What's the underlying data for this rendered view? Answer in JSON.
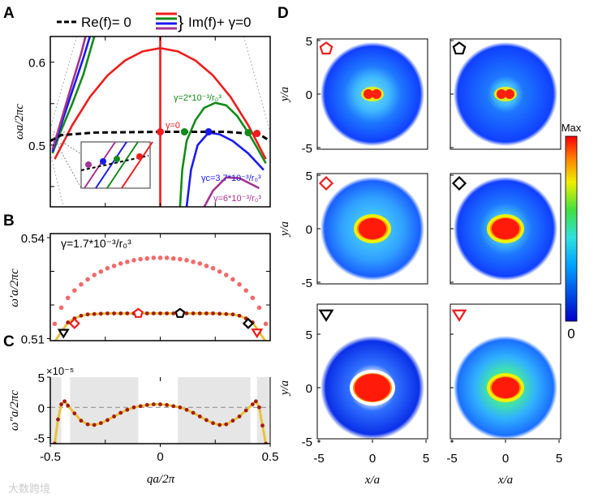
{
  "colors": {
    "red": "#ee1c1c",
    "green": "#138a1a",
    "blue": "#1a1aee",
    "purple": "#a4338e",
    "black": "#000000",
    "dots_light": "#f26a6a",
    "dots_dark": "#a31c10",
    "yellow": "#e8c23a",
    "band": "#e6e6e6"
  },
  "watermark": "大数跨境",
  "chart_data": [
    {
      "panel": "A",
      "type": "line",
      "ylabel": "ωa/2πc",
      "xlim": [
        -0.5,
        0.5
      ],
      "ylim": [
        0.4255,
        0.631
      ],
      "yticks": [
        "0.6",
        "0.5"
      ],
      "ytick_values": [
        0.6,
        0.5
      ],
      "legend": {
        "dashed": "Re(f)= 0",
        "solid": "Im(f)+ γ=0"
      },
      "series": [
        {
          "name": "γ=0",
          "color": "red",
          "points": [
            [
              -0.48,
              0.483
            ],
            [
              -0.4,
              0.524
            ],
            [
              -0.32,
              0.558
            ],
            [
              -0.24,
              0.584
            ],
            [
              -0.16,
              0.602
            ],
            [
              -0.08,
              0.613
            ],
            [
              0,
              0.617
            ],
            [
              0.08,
              0.613
            ],
            [
              0.16,
              0.602
            ],
            [
              0.24,
              0.584
            ],
            [
              0.32,
              0.558
            ],
            [
              0.4,
              0.524
            ],
            [
              0.48,
              0.483
            ]
          ]
        },
        {
          "name": "γ=0 vertical",
          "color": "red",
          "points": [
            [
              0,
              0.631
            ],
            [
              0,
              0.4255
            ]
          ]
        },
        {
          "name": "γ=2*10^-3/r0^3",
          "color": "green",
          "points": [
            [
              0.09,
              0.4255
            ],
            [
              0.1,
              0.47
            ],
            [
              0.12,
              0.505
            ],
            [
              0.16,
              0.53
            ],
            [
              0.2,
              0.545
            ],
            [
              0.25,
              0.551
            ],
            [
              0.3,
              0.548
            ],
            [
              0.35,
              0.535
            ],
            [
              0.4,
              0.515
            ],
            [
              0.44,
              0.497
            ],
            [
              0.48,
              0.478
            ]
          ]
        },
        {
          "name": "green-left",
          "color": "green",
          "points": [
            [
              -0.49,
              0.49
            ],
            [
              -0.45,
              0.518
            ],
            [
              -0.4,
              0.55
            ],
            [
              -0.35,
              0.585
            ],
            [
              -0.3,
              0.631
            ]
          ]
        },
        {
          "name": "γc=3.7*10^-3/r0^3",
          "color": "blue",
          "points": [
            [
              0.12,
              0.4255
            ],
            [
              0.14,
              0.47
            ],
            [
              0.17,
              0.5
            ],
            [
              0.22,
              0.515
            ],
            [
              0.27,
              0.513
            ],
            [
              0.33,
              0.505
            ],
            [
              0.4,
              0.49
            ],
            [
              0.47,
              0.47
            ]
          ]
        },
        {
          "name": "blue-left",
          "color": "blue",
          "points": [
            [
              -0.49,
              0.492
            ],
            [
              -0.45,
              0.525
            ],
            [
              -0.4,
              0.565
            ],
            [
              -0.35,
              0.605
            ],
            [
              -0.32,
              0.631
            ]
          ]
        },
        {
          "name": "γ=6*10^-3/r0^3",
          "color": "purple",
          "points": [
            [
              0.2,
              0.4255
            ],
            [
              0.24,
              0.445
            ],
            [
              0.3,
              0.461
            ],
            [
              0.36,
              0.46
            ],
            [
              0.42,
              0.452
            ],
            [
              0.45,
              0.448
            ]
          ]
        },
        {
          "name": "purple-left",
          "color": "purple",
          "points": [
            [
              -0.49,
              0.495
            ],
            [
              -0.45,
              0.53
            ],
            [
              -0.4,
              0.575
            ],
            [
              -0.36,
              0.61
            ],
            [
              -0.34,
              0.631
            ]
          ]
        },
        {
          "name": "Re(f)=0",
          "color": "black",
          "dashed": true,
          "points": [
            [
              -0.5,
              0.505
            ],
            [
              -0.45,
              0.512
            ],
            [
              -0.3,
              0.515
            ],
            [
              0,
              0.516
            ],
            [
              0.3,
              0.516
            ],
            [
              0.45,
              0.513
            ],
            [
              0.5,
              0.505
            ]
          ]
        },
        {
          "name": "light-line-left",
          "color": "gray",
          "dotted": true,
          "points": [
            [
              -0.38,
              0.631
            ],
            [
              -0.5,
              0.52
            ]
          ]
        },
        {
          "name": "light-line-left-low",
          "color": "gray",
          "dotted": true,
          "points": [
            [
              -0.5,
              0.49
            ],
            [
              -0.44,
              0.4255
            ]
          ]
        },
        {
          "name": "light-line-right",
          "color": "gray",
          "dotted": true,
          "points": [
            [
              0.38,
              0.631
            ],
            [
              0.5,
              0.515
            ]
          ]
        }
      ],
      "markers": [
        {
          "color": "red",
          "q": 0,
          "w": 0.516
        },
        {
          "color": "red",
          "q": 0.44,
          "w": 0.514
        },
        {
          "color": "green",
          "q": 0.11,
          "w": 0.516
        },
        {
          "color": "green",
          "q": 0.4,
          "w": 0.515
        },
        {
          "color": "blue",
          "q": 0.22,
          "w": 0.516
        }
      ],
      "annotations": [
        {
          "text": "γ=0",
          "color": "red"
        },
        {
          "text": "γ=2*10⁻³/r₀³",
          "color": "green"
        },
        {
          "text": "γc=3.7*10⁻³/r₀³",
          "color": "blue"
        },
        {
          "text": "γ=6*10⁻³/r₀³",
          "color": "purple"
        }
      ]
    },
    {
      "panel": "B",
      "type": "scatter",
      "ylabel": "ω′a/2πc",
      "annotation": "γ=1.7*10⁻³/r₀³",
      "xlim": [
        -0.5,
        0.5
      ],
      "ylim": [
        0.5094,
        0.5412
      ],
      "yticks": [
        "0.54",
        "0.51"
      ],
      "ytick_values": [
        0.54,
        0.51
      ],
      "q": [
        -0.48,
        -0.45,
        -0.42,
        -0.39,
        -0.36,
        -0.33,
        -0.3,
        -0.27,
        -0.24,
        -0.21,
        -0.18,
        -0.15,
        -0.12,
        -0.09,
        -0.06,
        -0.03,
        0,
        0.03,
        0.06,
        0.09,
        0.12,
        0.15,
        0.18,
        0.21,
        0.24,
        0.27,
        0.3,
        0.33,
        0.36,
        0.39,
        0.42,
        0.45,
        0.48
      ],
      "upper": [
        0.5144,
        0.5192,
        0.5221,
        0.5243,
        0.5261,
        0.5276,
        0.5289,
        0.5299,
        0.5309,
        0.5316,
        0.5323,
        0.5328,
        0.5333,
        0.5336,
        0.5338,
        0.534,
        0.534,
        0.534,
        0.5338,
        0.5336,
        0.5333,
        0.5328,
        0.5323,
        0.5316,
        0.5309,
        0.5299,
        0.5289,
        0.5276,
        0.5261,
        0.5243,
        0.5221,
        0.5192,
        0.5144
      ],
      "lower": [
        0.509,
        0.512,
        0.5148,
        0.516,
        0.5168,
        0.5172,
        0.5173,
        0.5174,
        0.5175,
        0.5175,
        0.5175,
        0.5175,
        0.5175,
        0.5175,
        0.5175,
        0.5175,
        0.5175,
        0.5175,
        0.5175,
        0.5175,
        0.5175,
        0.5175,
        0.5175,
        0.5175,
        0.5175,
        0.5174,
        0.5173,
        0.5172,
        0.5168,
        0.516,
        0.5148,
        0.512,
        0.509
      ],
      "markers": [
        {
          "shape": "triangle-down",
          "color": "black",
          "q": -0.44,
          "w": 0.5117
        },
        {
          "shape": "diamond",
          "color": "red",
          "q": -0.39,
          "w": 0.5145
        },
        {
          "shape": "pentagon",
          "color": "red",
          "q": -0.1,
          "w": 0.5175
        },
        {
          "shape": "pentagon",
          "color": "black",
          "q": 0.09,
          "w": 0.5175
        },
        {
          "shape": "diamond",
          "color": "black",
          "q": 0.4,
          "w": 0.5145
        },
        {
          "shape": "triangle-down",
          "color": "red",
          "q": 0.44,
          "w": 0.5118
        }
      ]
    },
    {
      "panel": "C",
      "type": "line",
      "ylabel": "ω″a/2πc",
      "xlabel": "qa/2π",
      "scale_label": "×10⁻⁵",
      "xlim": [
        -0.5,
        0.5
      ],
      "ylim": [
        -6,
        5
      ],
      "yticks": [
        "5",
        "0",
        "-5"
      ],
      "ytick_values": [
        5,
        0,
        -5
      ],
      "xticks": [
        "-0.5",
        "0",
        "0.5"
      ],
      "xtick_values": [
        -0.5,
        0,
        0.5
      ],
      "bands": [
        [
          -0.5,
          -0.45
        ],
        [
          -0.41,
          -0.1
        ],
        [
          0.08,
          0.41
        ],
        [
          0.44,
          0.5
        ]
      ],
      "q": [
        -0.48,
        -0.465,
        -0.45,
        -0.435,
        -0.42,
        -0.39,
        -0.36,
        -0.33,
        -0.3,
        -0.27,
        -0.24,
        -0.21,
        -0.18,
        -0.15,
        -0.12,
        -0.09,
        -0.06,
        -0.03,
        0,
        0.03,
        0.06,
        0.09,
        0.12,
        0.15,
        0.18,
        0.21,
        0.24,
        0.27,
        0.3,
        0.33,
        0.36,
        0.39,
        0.42,
        0.435,
        0.45,
        0.465,
        0.48
      ],
      "values": [
        -6,
        -2,
        0.5,
        1,
        0.3,
        -1,
        -2.2,
        -2.8,
        -2.9,
        -2.6,
        -2.1,
        -1.5,
        -0.9,
        -0.4,
        0,
        0.2,
        0.4,
        0.5,
        0.5,
        0.4,
        0.2,
        0,
        -0.4,
        -0.9,
        -1.5,
        -2.1,
        -2.6,
        -2.9,
        -2.8,
        -2.2,
        -1.5,
        -0.5,
        0.5,
        1,
        0,
        -3,
        -6
      ]
    },
    {
      "panel": "D",
      "type": "heatmap",
      "xlabel": "x/a",
      "ylabel": "y/a",
      "ticks": [
        "-5",
        "0",
        "5"
      ],
      "colorbar": {
        "max": "Max",
        "min": "0"
      },
      "maps": [
        {
          "marker": "pentagon",
          "color": "red",
          "core": "dot-pair",
          "spread": 0.55
        },
        {
          "marker": "pentagon",
          "color": "black",
          "core": "dot-pair",
          "spread": 0.35
        },
        {
          "marker": "diamond",
          "color": "red",
          "core": "blob",
          "spread": 0.6
        },
        {
          "marker": "diamond",
          "color": "black",
          "core": "blob",
          "spread": 0.5
        },
        {
          "marker": "triangle-down",
          "color": "black",
          "core": "big-blob",
          "spread": 0.45
        },
        {
          "marker": "triangle-down",
          "color": "red",
          "core": "blob",
          "spread": 0.8
        }
      ]
    }
  ],
  "labels": {
    "A": "A",
    "B": "B",
    "C": "C",
    "D": "D"
  }
}
